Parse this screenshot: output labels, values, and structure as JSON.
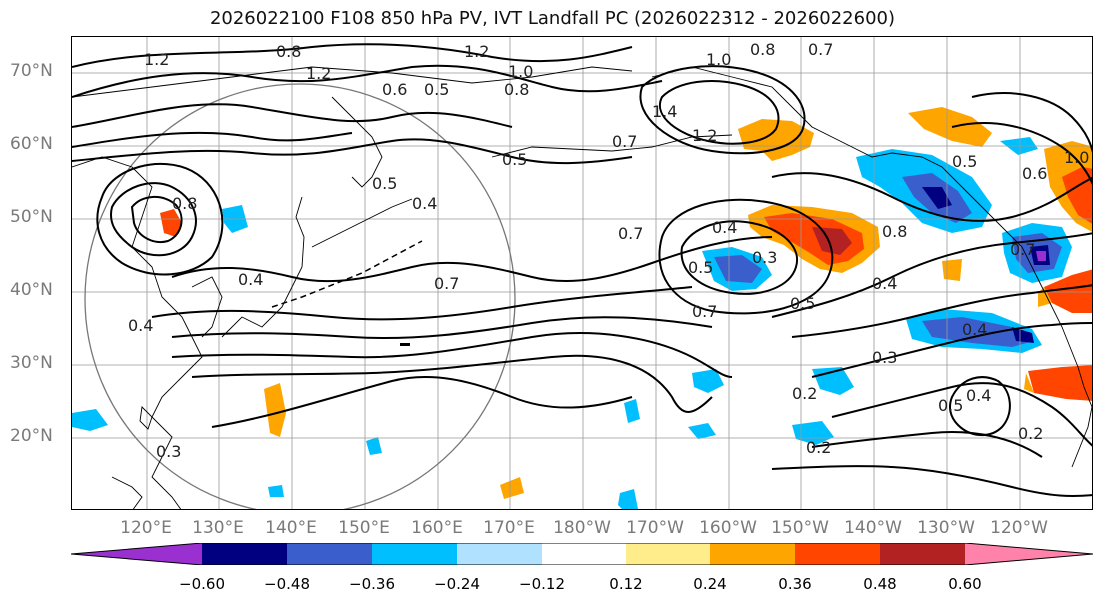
{
  "title": "2026022100 F108 850 hPa PV, IVT Landfall PC (2026022312 - 2026022600)",
  "latitude_labels": [
    "70°N",
    "60°N",
    "50°N",
    "40°N",
    "30°N",
    "20°N"
  ],
  "longitude_labels": [
    "120°E",
    "130°E",
    "140°E",
    "150°E",
    "160°E",
    "170°E",
    "180°W",
    "170°W",
    "160°W",
    "150°W",
    "140°W",
    "130°W",
    "120°W"
  ],
  "colorbar": {
    "ticks": [
      "−0.60",
      "−0.48",
      "−0.36",
      "−0.24",
      "−0.12",
      "0.12",
      "0.24",
      "0.36",
      "0.48",
      "0.60"
    ],
    "colors": [
      "#9b30d0",
      "#000080",
      "#3a5fcd",
      "#00bfff",
      "#b0e2ff",
      "#ffffff",
      "#ffec8b",
      "#ffa500",
      "#ff4500",
      "#b22222",
      "#ff82ab"
    ]
  },
  "contour_labels": [
    "1.2",
    "0.8",
    "1.2",
    "1.0",
    "0.8",
    "0.7",
    "1.2",
    "0.6",
    "0.5",
    "1.0",
    "0.8",
    "1.4",
    "1.2",
    "0.7",
    "0.5",
    "0.5",
    "0.4",
    "0.8",
    "0.7",
    "0.4",
    "0.3",
    "0.5",
    "0.4",
    "0.7",
    "0.5",
    "0.7",
    "0.4",
    "0.8",
    "0.5",
    "0.4",
    "0.3",
    "0.4",
    "0.2",
    "0.2",
    "0.5",
    "0.4",
    "0.2",
    "0.3",
    "1.0",
    "0.6",
    "0.7"
  ]
}
